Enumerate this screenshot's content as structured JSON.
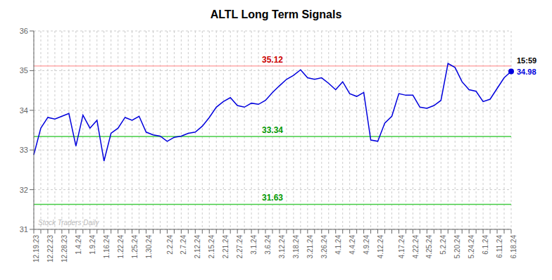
{
  "chart_data": {
    "type": "line",
    "title": "ALTL Long Term Signals",
    "categories": [
      "12.19.23",
      null,
      "12.22.23",
      null,
      "12.28.23",
      null,
      "1.4.24",
      null,
      "1.9.24",
      null,
      "1.16.24",
      null,
      "1.22.24",
      null,
      "1.25.24",
      null,
      "1.30.24",
      null,
      null,
      "2.2.24",
      null,
      "2.7.24",
      null,
      "2.12.24",
      null,
      "2.15.24",
      null,
      "2.21.24",
      null,
      "2.27.24",
      null,
      "3.1.24",
      null,
      "3.6.24",
      null,
      "3.12.24",
      null,
      "3.18.24",
      null,
      "3.21.24",
      null,
      "3.26.24",
      null,
      "4.1.24",
      null,
      "4.4.24",
      null,
      "4.9.24",
      null,
      "4.12.24",
      null,
      null,
      "4.17.24",
      null,
      "4.22.24",
      null,
      "4.25.24",
      null,
      "5.2.24",
      null,
      "5.20.24",
      null,
      "5.24.24",
      null,
      "6.1.24",
      null,
      "6.11.24",
      null,
      "6.18.24"
    ],
    "values": [
      32.88,
      33.55,
      33.82,
      33.78,
      33.85,
      33.92,
      33.1,
      33.88,
      33.55,
      33.75,
      32.72,
      33.42,
      33.55,
      33.82,
      33.75,
      33.85,
      33.45,
      33.38,
      33.35,
      33.22,
      33.32,
      33.35,
      33.42,
      33.45,
      33.6,
      33.82,
      34.08,
      34.22,
      34.32,
      34.12,
      34.08,
      34.18,
      34.15,
      34.25,
      34.45,
      34.62,
      34.78,
      34.88,
      35.02,
      34.82,
      34.78,
      34.82,
      34.68,
      34.52,
      34.72,
      34.42,
      34.35,
      34.45,
      33.25,
      33.22,
      33.68,
      33.85,
      34.42,
      34.38,
      34.38,
      34.08,
      34.05,
      34.12,
      34.25,
      35.18,
      35.08,
      34.72,
      34.52,
      34.48,
      34.22,
      34.28,
      34.55,
      34.82,
      34.98
    ],
    "color": "#0000dd",
    "ylim": [
      31,
      36
    ],
    "yticks": [
      31,
      32,
      33,
      34,
      35,
      36
    ],
    "grid": true,
    "reference_lines": [
      {
        "value": 35.12,
        "color": "#ffaaaa",
        "label": "35.12",
        "label_color": "#cc0000"
      },
      {
        "value": 33.34,
        "color": "#44cc44",
        "label": "33.34",
        "label_color": "#009900"
      },
      {
        "value": 31.63,
        "color": "#44cc44",
        "label": "31.63",
        "label_color": "#009900"
      }
    ],
    "last_point": {
      "color": "#0000dd",
      "labels": [
        {
          "text": "15:59",
          "color": "#000000"
        },
        {
          "text": "34.98",
          "color": "#0000dd"
        }
      ]
    },
    "watermark": {
      "text": "Stock Traders Daily",
      "color": "#bbbbbb"
    }
  }
}
